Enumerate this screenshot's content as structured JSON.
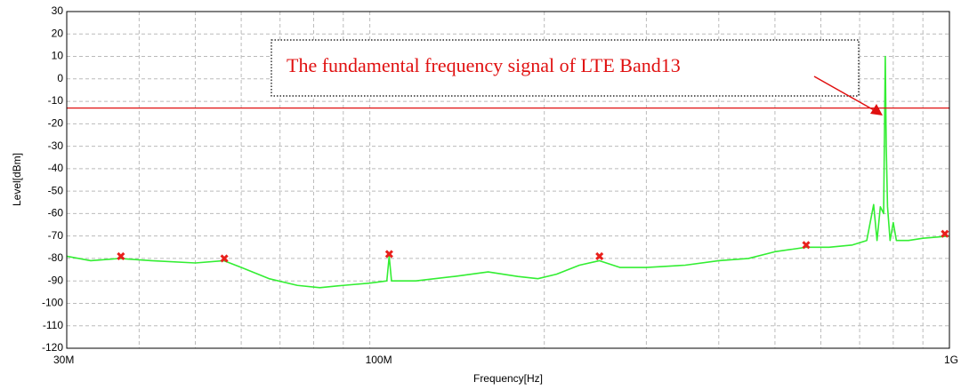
{
  "chart_data": {
    "type": "line",
    "xlabel": "Frequency[Hz]",
    "ylabel": "Level[dBm]",
    "xscale": "log",
    "xlim": [
      30000000,
      1000000000
    ],
    "xticks": [
      {
        "value": 30000000,
        "label": "30M"
      },
      {
        "value": 100000000,
        "label": "100M"
      },
      {
        "value": 1000000000,
        "label": "1G"
      }
    ],
    "xminorticks": [
      40000000,
      50000000,
      60000000,
      70000000,
      80000000,
      90000000,
      200000000,
      300000000,
      400000000,
      500000000,
      600000000,
      700000000,
      800000000,
      900000000
    ],
    "ylim": [
      -120,
      30
    ],
    "yticks": [
      -120,
      -110,
      -100,
      -90,
      -80,
      -70,
      -60,
      -50,
      -40,
      -30,
      -20,
      -10,
      0,
      10,
      20,
      30
    ],
    "grid": true,
    "x": [
      30000000,
      33000000,
      37000000,
      42000000,
      50000000,
      56000000,
      60000000,
      67000000,
      75000000,
      82000000,
      90000000,
      100000000,
      107000000,
      108000000,
      109000000,
      120000000,
      140000000,
      160000000,
      180000000,
      195000000,
      210000000,
      230000000,
      249000000,
      270000000,
      300000000,
      350000000,
      400000000,
      450000000,
      500000000,
      566000000,
      620000000,
      680000000,
      720000000,
      740000000,
      750000000,
      760000000,
      770000000,
      775000000,
      778000000,
      782000000,
      790000000,
      800000000,
      810000000,
      850000000,
      900000000,
      1000000000
    ],
    "series": [
      {
        "color": "#33ee33",
        "values": [
          -79,
          -81,
          -80,
          -81,
          -82,
          -81,
          -84,
          -89,
          -92,
          -93,
          -92,
          -91,
          -90,
          -79,
          -90,
          -90,
          -88,
          -86,
          -88,
          -89,
          -87,
          -83,
          -81,
          -84,
          -84,
          -83,
          -81,
          -80,
          -77,
          -75,
          -75,
          -74,
          -72,
          -56,
          -72,
          -57,
          -60,
          10,
          -30,
          -57,
          -72,
          -64,
          -72,
          -72,
          -71,
          -70
        ]
      }
    ],
    "markers": {
      "color": "#e8201c",
      "x": [
        37200000,
        56100000,
        108000000,
        249000000,
        566000000,
        982000000
      ],
      "values": [
        -79,
        -80,
        -78,
        -79,
        -74,
        -69
      ]
    },
    "limit_line": {
      "value": -13,
      "color": "#e01010"
    },
    "annotation": {
      "text": "The fundamental frequency signal of LTE Band13",
      "color": "#e01010"
    }
  }
}
